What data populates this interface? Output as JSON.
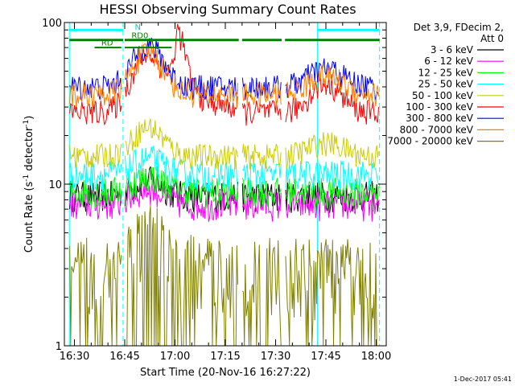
{
  "chart_data": {
    "type": "line",
    "title": "HESSI Observing Summary Count Rates",
    "xlabel": "Start Time (20-Nov-16 16:27:22)",
    "ylabel_main": "Count Rate (s",
    "ylabel_sup1": "-1",
    "ylabel_mid": " detector",
    "ylabel_sup2": "-1",
    "ylabel_end": ")",
    "yscale": "log",
    "ylim": [
      1,
      100
    ],
    "xlim_minutes": [
      -3,
      93
    ],
    "x_ticks": [
      {
        "t": 0,
        "label": "16:30"
      },
      {
        "t": 15,
        "label": "16:45"
      },
      {
        "t": 30,
        "label": "17:00"
      },
      {
        "t": 45,
        "label": "17:15"
      },
      {
        "t": 60,
        "label": "17:30"
      },
      {
        "t": 75,
        "label": "17:45"
      },
      {
        "t": 90,
        "label": "18:00"
      }
    ],
    "y_ticks": [
      {
        "v": 1,
        "label": "1"
      },
      {
        "v": 10,
        "label": "10"
      },
      {
        "v": 100,
        "label": "100"
      }
    ],
    "legend_header": [
      "Det 3,9, FDecim 2,",
      "Att 0"
    ],
    "legend_placement": "right",
    "series": [
      {
        "name": "3 - 6 keV",
        "color": "#000000",
        "base": 8.5
      },
      {
        "name": "6 - 12 keV",
        "color": "#ff00ff",
        "base": 7.5
      },
      {
        "name": "12 - 25 keV",
        "color": "#00ff00",
        "base": 9.0
      },
      {
        "name": "25 - 50 keV",
        "color": "#00ffff",
        "base": 11.5
      },
      {
        "name": "50 - 100 keV",
        "color": "#cccc00",
        "base": 15.0
      },
      {
        "name": "100 - 300 keV",
        "color": "#ff0000",
        "base": 28.0
      },
      {
        "name": "300 - 800 keV",
        "color": "#0000ff",
        "base": 40.0
      },
      {
        "name": "800 - 7000 keV",
        "color": "#ff8000",
        "base": 36.0
      },
      {
        "name": "7000 - 20000 keV",
        "color": "#808000",
        "base": 3.0
      }
    ],
    "flag_labels": [
      {
        "text": "N",
        "t": 18,
        "v": 90
      },
      {
        "text": "RD0",
        "t": 17,
        "v": 80
      },
      {
        "text": "RD",
        "t": 8,
        "v": 72
      }
    ],
    "footer": "1-Dec-2017 05:41"
  }
}
